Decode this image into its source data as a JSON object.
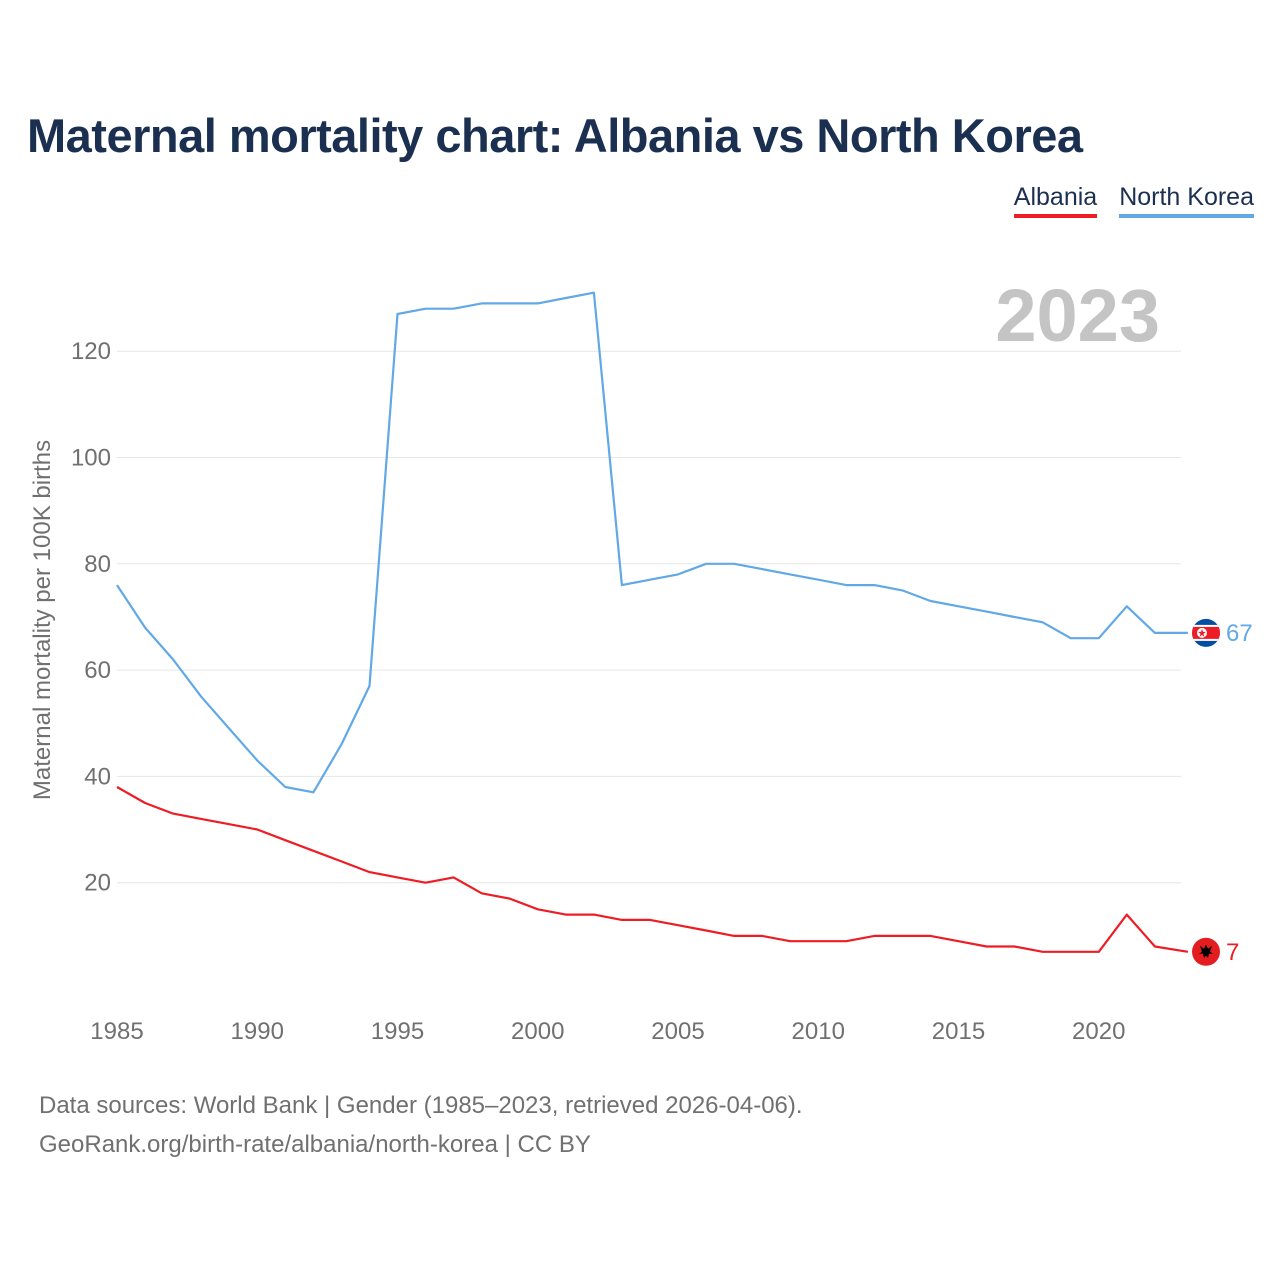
{
  "title": "Maternal mortality chart: Albania vs North Korea",
  "legend": {
    "albania": "Albania",
    "north_korea": "North Korea"
  },
  "year_watermark": "2023",
  "footer": {
    "line1": "Data sources: World Bank | Gender (1985–2023, retrieved 2026-04-06).",
    "line2": "GeoRank.org/birth-rate/albania/north-korea | CC BY"
  },
  "colors": {
    "albania": "#ee1c24",
    "north_korea": "#61a8e6",
    "title": "#1b3050",
    "grid": "#e6e6e6",
    "axis_text": "#707070",
    "watermark": "#c4c4c4"
  },
  "chart_data": {
    "type": "line",
    "title": "Maternal mortality chart: Albania vs North Korea",
    "xlabel": "",
    "ylabel": "Maternal mortality per 100K births",
    "xlim": [
      1985,
      2024
    ],
    "ylim": [
      0,
      130
    ],
    "xticks": [
      1985,
      1990,
      1995,
      2000,
      2005,
      2010,
      2015,
      2020
    ],
    "yticks": [
      20,
      40,
      60,
      80,
      100,
      120
    ],
    "grid": true,
    "legend_position": "top-right",
    "x": [
      1985,
      1986,
      1987,
      1988,
      1989,
      1990,
      1991,
      1992,
      1993,
      1994,
      1995,
      1996,
      1997,
      1998,
      1999,
      2000,
      2001,
      2002,
      2003,
      2004,
      2005,
      2006,
      2007,
      2008,
      2009,
      2010,
      2011,
      2012,
      2013,
      2014,
      2015,
      2016,
      2017,
      2018,
      2019,
      2020,
      2021,
      2022,
      2023
    ],
    "series": [
      {
        "name": "Albania",
        "color": "#ee1c24",
        "end_label": "7",
        "values": [
          38,
          35,
          33,
          32,
          31,
          30,
          28,
          26,
          24,
          22,
          21,
          20,
          21,
          18,
          17,
          15,
          14,
          14,
          13,
          13,
          12,
          11,
          10,
          10,
          9,
          9,
          9,
          10,
          10,
          10,
          9,
          8,
          8,
          7,
          7,
          7,
          14,
          8,
          7
        ]
      },
      {
        "name": "North Korea",
        "color": "#61a8e6",
        "end_label": "67",
        "values": [
          76,
          68,
          62,
          55,
          49,
          43,
          38,
          37,
          46,
          57,
          127,
          128,
          128,
          129,
          129,
          129,
          130,
          131,
          76,
          77,
          78,
          80,
          80,
          79,
          78,
          77,
          76,
          76,
          75,
          73,
          72,
          71,
          70,
          69,
          66,
          66,
          72,
          67,
          67
        ]
      }
    ]
  }
}
